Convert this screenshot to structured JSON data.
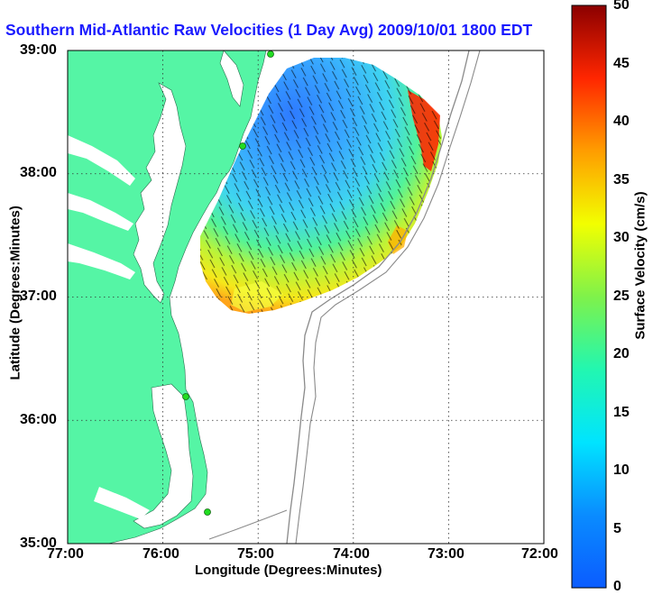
{
  "title": "Southern Mid-Atlantic Raw Velocities (1 Day Avg) 2009/10/01 1800 EDT",
  "x_axis": {
    "label": "Longitude (Degrees:Minutes)",
    "ticks": [
      "77:00",
      "76:00",
      "75:00",
      "74:00",
      "73:00",
      "72:00"
    ]
  },
  "y_axis": {
    "label": "Latitude (Degrees:Minutes)",
    "ticks": [
      "39:00",
      "38:00",
      "37:00",
      "36:00",
      "35:00"
    ]
  },
  "colorbar": {
    "label": "Surface Velocity (cm/s)",
    "ticks": [
      "50",
      "45",
      "40",
      "35",
      "30",
      "25",
      "20",
      "15",
      "10",
      "5",
      "0"
    ],
    "min": 0,
    "max": 50,
    "colormap": "jet"
  },
  "colors": {
    "land": "#55f5a5",
    "title": "#1a1aff",
    "bathymetry": "#8a8a8a",
    "station": "#22dd22"
  },
  "map": {
    "lon_range": [
      -77,
      -72
    ],
    "lat_range": [
      35,
      39
    ],
    "grid": "dotted"
  }
}
